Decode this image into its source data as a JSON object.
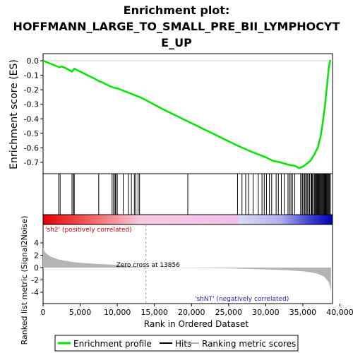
{
  "chart_data": {
    "type": "line",
    "title_lines": [
      "Enrichment plot:",
      "HOFFMANN_LARGE_TO_SMALL_PRE_BII_LYMPHOCYT",
      "E_UP"
    ],
    "colors": {
      "profile": "#00e600",
      "hits": "#000000",
      "metric": "#b4b4b4",
      "pos_label": "#cc0000",
      "neg_label": "#2222bb"
    },
    "es_panel": {
      "ylabel": "Enrichment score (ES)",
      "ylim": [
        -0.78,
        0.03
      ],
      "yticks": [
        0.0,
        -0.1,
        -0.2,
        -0.3,
        -0.4,
        -0.5,
        -0.6,
        -0.7
      ],
      "ytick_labels": [
        "0.0",
        "-0.1",
        "-0.2",
        "-0.3",
        "-0.4",
        "-0.5",
        "-0.6",
        "-0.7"
      ],
      "profile_x": [
        0,
        2200,
        2500,
        3000,
        3900,
        4200,
        4600,
        5000,
        6000,
        7000,
        7500,
        8000,
        9000,
        9500,
        10000,
        11000,
        12000,
        13000,
        14000,
        16000,
        18000,
        20000,
        22000,
        24000,
        26000,
        28000,
        30000,
        31000,
        32000,
        33000,
        34000,
        34500,
        35000,
        35500,
        36000,
        36500,
        37000,
        37400,
        37700,
        38000,
        38300,
        38500,
        38700
      ],
      "profile_y": [
        0.0,
        -0.045,
        -0.04,
        -0.05,
        -0.075,
        -0.055,
        -0.065,
        -0.075,
        -0.1,
        -0.125,
        -0.14,
        -0.15,
        -0.175,
        -0.185,
        -0.19,
        -0.21,
        -0.23,
        -0.25,
        -0.275,
        -0.33,
        -0.38,
        -0.43,
        -0.48,
        -0.53,
        -0.58,
        -0.625,
        -0.665,
        -0.69,
        -0.7,
        -0.715,
        -0.725,
        -0.74,
        -0.73,
        -0.71,
        -0.69,
        -0.65,
        -0.6,
        -0.52,
        -0.42,
        -0.3,
        -0.15,
        -0.05,
        0.005
      ]
    },
    "hits": [
      2100,
      2300,
      3900,
      4100,
      4200,
      7500,
      9300,
      9500,
      9700,
      9800,
      10000,
      10800,
      11500,
      11900,
      12300,
      12500,
      12800,
      13000,
      19500,
      26200,
      26800,
      27300,
      27700,
      28300,
      29000,
      29500,
      29800,
      30100,
      30500,
      30800,
      31400,
      31700,
      32100,
      32500,
      33000,
      33200,
      33400,
      33600,
      33900,
      34700,
      34900,
      35000,
      35200,
      35300,
      35500,
      35600,
      35800,
      35900,
      36100,
      36200,
      36300,
      36500,
      36600,
      36700,
      36800,
      36900,
      37000,
      37100,
      37200,
      37300,
      37400,
      37500,
      37600,
      37700,
      37800,
      37900,
      38000,
      38100,
      38200,
      38300,
      38400,
      38500,
      38600,
      38700
    ],
    "metric_panel": {
      "ylabel": "Ranked list metric (Signal2Noise)",
      "ylim": [
        -4.1,
        4.4
      ],
      "yticks": [
        4,
        2,
        0,
        -2,
        -4
      ],
      "ytick_labels": [
        "4",
        "2",
        "0",
        "-2",
        "-4"
      ],
      "zero_cross_label": "Zero cross at 13856",
      "zero_cross": 13856,
      "pos_label": "'sh2' (positively correlated)",
      "neg_label": "'shNT' (negatively correlated)",
      "metric_x": [
        0,
        200,
        500,
        1000,
        1500,
        2000,
        3000,
        4000,
        5000,
        7000,
        9000,
        10000,
        11000,
        12000,
        13000,
        13856,
        16000,
        20000,
        25000,
        30000,
        33000,
        35000,
        36000,
        36800,
        37400,
        37900,
        38200,
        38500,
        38700,
        38800
      ],
      "metric_y": [
        3.3,
        2.6,
        2.2,
        1.8,
        1.55,
        1.35,
        1.1,
        0.9,
        0.78,
        0.62,
        0.48,
        0.42,
        0.3,
        0.2,
        0.08,
        0.0,
        -0.02,
        -0.05,
        -0.12,
        -0.3,
        -0.45,
        -0.6,
        -0.75,
        -0.95,
        -1.2,
        -1.5,
        -1.9,
        -2.4,
        -3.2,
        -3.9
      ]
    },
    "xaxis": {
      "xlabel": "Rank in Ordered Dataset",
      "xlim": [
        0,
        39000
      ],
      "xticks": [
        0,
        5000,
        10000,
        15000,
        20000,
        25000,
        30000,
        35000,
        40000
      ],
      "xtick_labels": [
        "0",
        "5,000",
        "10,000",
        "15,000",
        "20,000",
        "25,000",
        "30,000",
        "35,000",
        "40,000"
      ]
    },
    "legend": [
      {
        "label": "Enrichment profile",
        "kind": "profile"
      },
      {
        "label": "Hits",
        "kind": "hits"
      },
      {
        "label": "Ranking metric scores",
        "kind": "metric"
      }
    ]
  }
}
